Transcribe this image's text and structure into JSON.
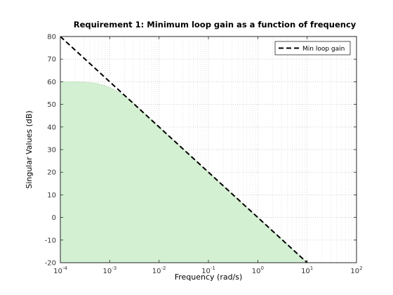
{
  "chart_data": {
    "type": "area",
    "title": "Requirement 1: Minimum loop gain as a function of frequency",
    "xlabel": "Frequency (rad/s)",
    "ylabel": "Singular Values (dB)",
    "xscale": "log",
    "xlim": [
      0.0001,
      100
    ],
    "ylim": [
      -20,
      80
    ],
    "x_tick_base": "10",
    "x_tick_exponents": [
      "-4",
      "-3",
      "-2",
      "-1",
      "0",
      "1",
      "2"
    ],
    "x_tick_values": [
      0.0001,
      0.001,
      0.01,
      0.1,
      1,
      10,
      100
    ],
    "y_ticks": [
      -20,
      -10,
      0,
      10,
      20,
      30,
      40,
      50,
      60,
      70,
      80
    ],
    "grid": true,
    "grid_style": "dotted, major and minor",
    "legend_position": "top-right",
    "series": [
      {
        "name": "Min loop gain",
        "style": "dashed",
        "color": "#000000",
        "x": [
          0.0001,
          10
        ],
        "y": [
          80,
          -20
        ]
      },
      {
        "style": "shaded region",
        "color": "#d4f0d2",
        "x": [
          0.0001,
          0.0002,
          0.0003,
          0.0005,
          0.0007,
          0.001,
          0.0015,
          0.002,
          0.003,
          0.005,
          0.01,
          0.1,
          1,
          10
        ],
        "y": [
          60,
          60,
          59.8,
          59.3,
          58.6,
          57.5,
          55.5,
          53.8,
          50.7,
          46.2,
          40,
          20,
          0,
          -20
        ]
      }
    ]
  }
}
